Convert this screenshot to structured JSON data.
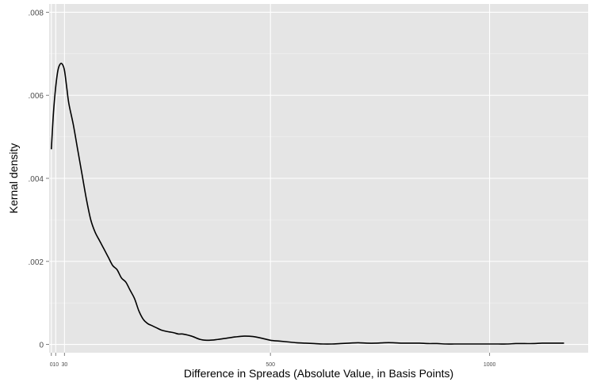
{
  "chart_data": {
    "type": "line",
    "title": "",
    "xlabel": "Difference in Spreads (Absolute Value, in Basis Points)",
    "ylabel": "Kernal density",
    "xlim": [
      -5,
      1225
    ],
    "ylim": [
      -0.0002,
      0.0082
    ],
    "x_ticks": [
      {
        "value": 0,
        "label": "0"
      },
      {
        "value": 10,
        "label": "10"
      },
      {
        "value": 30,
        "label": "30"
      },
      {
        "value": 500,
        "label": "500"
      },
      {
        "value": 1000,
        "label": "1000"
      }
    ],
    "y_ticks": [
      {
        "value": 0,
        "label": "0"
      },
      {
        "value": 0.002,
        "label": ".002"
      },
      {
        "value": 0.004,
        "label": ".004"
      },
      {
        "value": 0.006,
        "label": ".006"
      },
      {
        "value": 0.008,
        "label": ".008"
      }
    ],
    "grid": true,
    "legend": "none",
    "colors": {
      "panel_background": "#e5e5e5",
      "grid_major": "#ffffff",
      "grid_minor": "#f2f2f2",
      "line": "#000000",
      "tick_label": "#4d4d4d"
    },
    "series": [
      {
        "x": [
          0,
          5,
          10,
          15,
          20,
          25,
          30,
          35,
          40,
          50,
          60,
          70,
          80,
          90,
          100,
          110,
          120,
          130,
          140,
          150,
          160,
          170,
          180,
          190,
          200,
          210,
          220,
          230,
          240,
          250,
          260,
          270,
          280,
          290,
          300,
          320,
          340,
          360,
          380,
          400,
          420,
          440,
          460,
          480,
          500,
          520,
          540,
          560,
          580,
          600,
          620,
          640,
          660,
          680,
          700,
          720,
          740,
          760,
          780,
          800,
          820,
          840,
          860,
          880,
          900,
          920,
          940,
          960,
          980,
          1000,
          1020,
          1040,
          1060,
          1080,
          1100,
          1120,
          1140,
          1160,
          1170
        ],
        "y": [
          0.0047,
          0.0056,
          0.0062,
          0.0066,
          0.00675,
          0.00675,
          0.0066,
          0.0062,
          0.0058,
          0.0053,
          0.0047,
          0.0041,
          0.0035,
          0.003,
          0.0027,
          0.0025,
          0.0023,
          0.0021,
          0.0019,
          0.0018,
          0.0016,
          0.0015,
          0.0013,
          0.0011,
          0.0008,
          0.0006,
          0.0005,
          0.00045,
          0.0004,
          0.00035,
          0.00032,
          0.0003,
          0.00028,
          0.00025,
          0.00025,
          0.0002,
          0.00012,
          0.0001,
          0.00012,
          0.00015,
          0.00018,
          0.0002,
          0.00019,
          0.00015,
          0.0001,
          8e-05,
          6e-05,
          4e-05,
          3e-05,
          2e-05,
          1e-05,
          1e-05,
          2e-05,
          3e-05,
          4e-05,
          3e-05,
          3e-05,
          4e-05,
          4e-05,
          3e-05,
          3e-05,
          3e-05,
          2e-05,
          2e-05,
          1e-05,
          1e-05,
          1e-05,
          1e-05,
          1e-05,
          1e-05,
          1e-05,
          1e-05,
          2e-05,
          2e-05,
          2e-05,
          3e-05,
          3e-05,
          3e-05,
          3e-05
        ]
      }
    ]
  }
}
